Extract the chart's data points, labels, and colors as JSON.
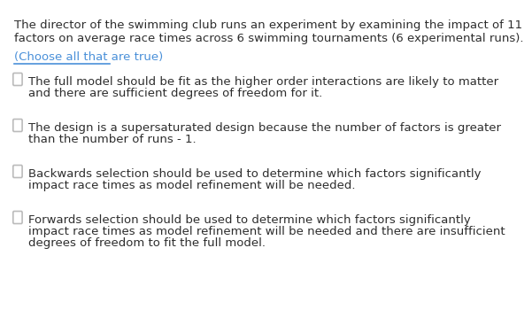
{
  "background_color": "#ffffff",
  "header_text": "The director of the swimming club runs an experiment by examining the impact of 11\nfactors on average race times across 6 swimming tournaments (6 experimental runs).",
  "subheader_text": "(Choose all that are true)",
  "header_color": "#2d2d2d",
  "subheader_color": "#4a90d9",
  "options": [
    {
      "line1": "The full model should be fit as the higher order interactions are likely to matter",
      "line2": "and there are sufficient degrees of freedom for it."
    },
    {
      "line1": "The design is a supersaturated design because the number of factors is greater",
      "line2": "than the number of runs - 1."
    },
    {
      "line1": "Backwards selection should be used to determine which factors significantly",
      "line2": "impact race times as model refinement will be needed."
    },
    {
      "line1": "Forwards selection should be used to determine which factors significantly",
      "line2": "impact race times as model refinement will be needed and there are insufficient",
      "line3": "degrees of freedom to fit the full model."
    }
  ],
  "text_color": "#2d2d2d",
  "checkbox_color": "#cccccc",
  "font_size": 9.5,
  "header_font_size": 9.5
}
